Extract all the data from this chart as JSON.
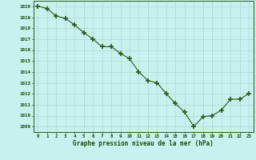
{
  "x": [
    0,
    1,
    2,
    3,
    4,
    5,
    6,
    7,
    8,
    9,
    10,
    11,
    12,
    13,
    14,
    15,
    16,
    17,
    18,
    19,
    20,
    21,
    22,
    23
  ],
  "y": [
    1020.0,
    1019.8,
    1019.1,
    1018.9,
    1018.3,
    1017.6,
    1017.0,
    1016.3,
    1016.3,
    1015.7,
    1015.2,
    1014.0,
    1013.2,
    1013.0,
    1012.0,
    1011.1,
    1010.3,
    1009.0,
    1009.9,
    1010.0,
    1010.5,
    1011.5,
    1011.5,
    1012.0
  ],
  "line_color": "#2d5a1b",
  "marker_color": "#2d5a1b",
  "bg_color": "#c8f0ee",
  "grid_color": "#b0d8d0",
  "xlabel": "Graphe pression niveau de la mer (hPa)",
  "xlabel_color": "#1a4a0a",
  "tick_color": "#1a4a0a",
  "ylim_min": 1008.5,
  "ylim_max": 1020.5,
  "xlim_min": -0.5,
  "xlim_max": 23.5
}
